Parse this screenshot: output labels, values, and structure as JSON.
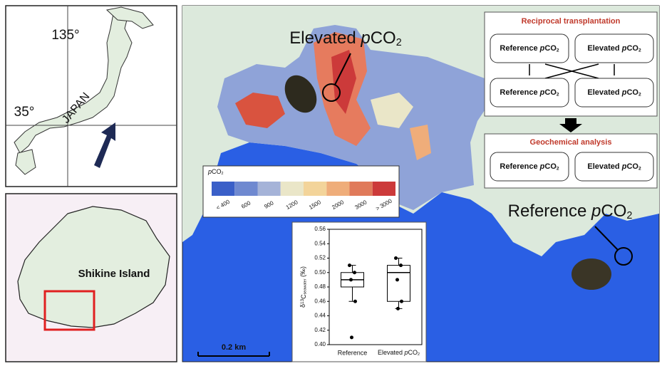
{
  "japan_map": {
    "longitude_label": "135°",
    "latitude_label": "35°",
    "country_label": "JAPAN"
  },
  "island_map": {
    "label": "Shikine Island"
  },
  "main_map": {
    "elevated_label": "Elevated pCO2",
    "reference_label": "Reference pCO2",
    "scale_bar": "0.2 km",
    "legend": {
      "title": "pCO2",
      "labels": [
        "< 400",
        "600",
        "900",
        "1200",
        "1500",
        "2000",
        "3000",
        "> 3000"
      ],
      "colors": [
        "#3a5fc8",
        "#6f89d0",
        "#a5b3d8",
        "#eae6c8",
        "#f3d49a",
        "#efad7a",
        "#e07a5a",
        "#cc3a3a"
      ]
    }
  },
  "flow": {
    "top": {
      "title": "Reciprocal transplantation",
      "boxes": [
        "Reference pCO2",
        "Elevated pCO2",
        "Reference pCO2",
        "Elevated pCO2"
      ]
    },
    "bottom": {
      "title": "Geochemical analysis",
      "boxes": [
        "Reference pCO2",
        "Elevated pCO2"
      ]
    }
  },
  "chart_data": {
    "type": "box",
    "y_label": "δ13Cseawater (‰)",
    "categories": [
      "Reference",
      "Elevated pCO2"
    ],
    "ylim": [
      0.4,
      0.56
    ],
    "yticks": [
      {
        "value": 0.4,
        "label": "0.40"
      },
      {
        "value": 0.42,
        "label": "0.42"
      },
      {
        "value": 0.44,
        "label": "0.44"
      },
      {
        "value": 0.46,
        "label": "0.46"
      },
      {
        "value": 0.48,
        "label": "0.48"
      },
      {
        "value": 0.5,
        "label": "0.50"
      },
      {
        "value": 0.52,
        "label": "0.52"
      },
      {
        "value": 0.54,
        "label": "0.54"
      },
      {
        "value": 0.56,
        "label": "0.56"
      }
    ],
    "color": "#000000",
    "boxes": [
      {
        "low": 0.46,
        "q1": 0.48,
        "median": 0.49,
        "q3": 0.5,
        "high": 0.51,
        "points": [
          0.51,
          0.5,
          0.49,
          0.46,
          0.41
        ]
      },
      {
        "low": 0.45,
        "q1": 0.46,
        "median": 0.5,
        "q3": 0.51,
        "high": 0.52,
        "points": [
          0.52,
          0.51,
          0.49,
          0.46,
          0.45
        ]
      }
    ]
  }
}
